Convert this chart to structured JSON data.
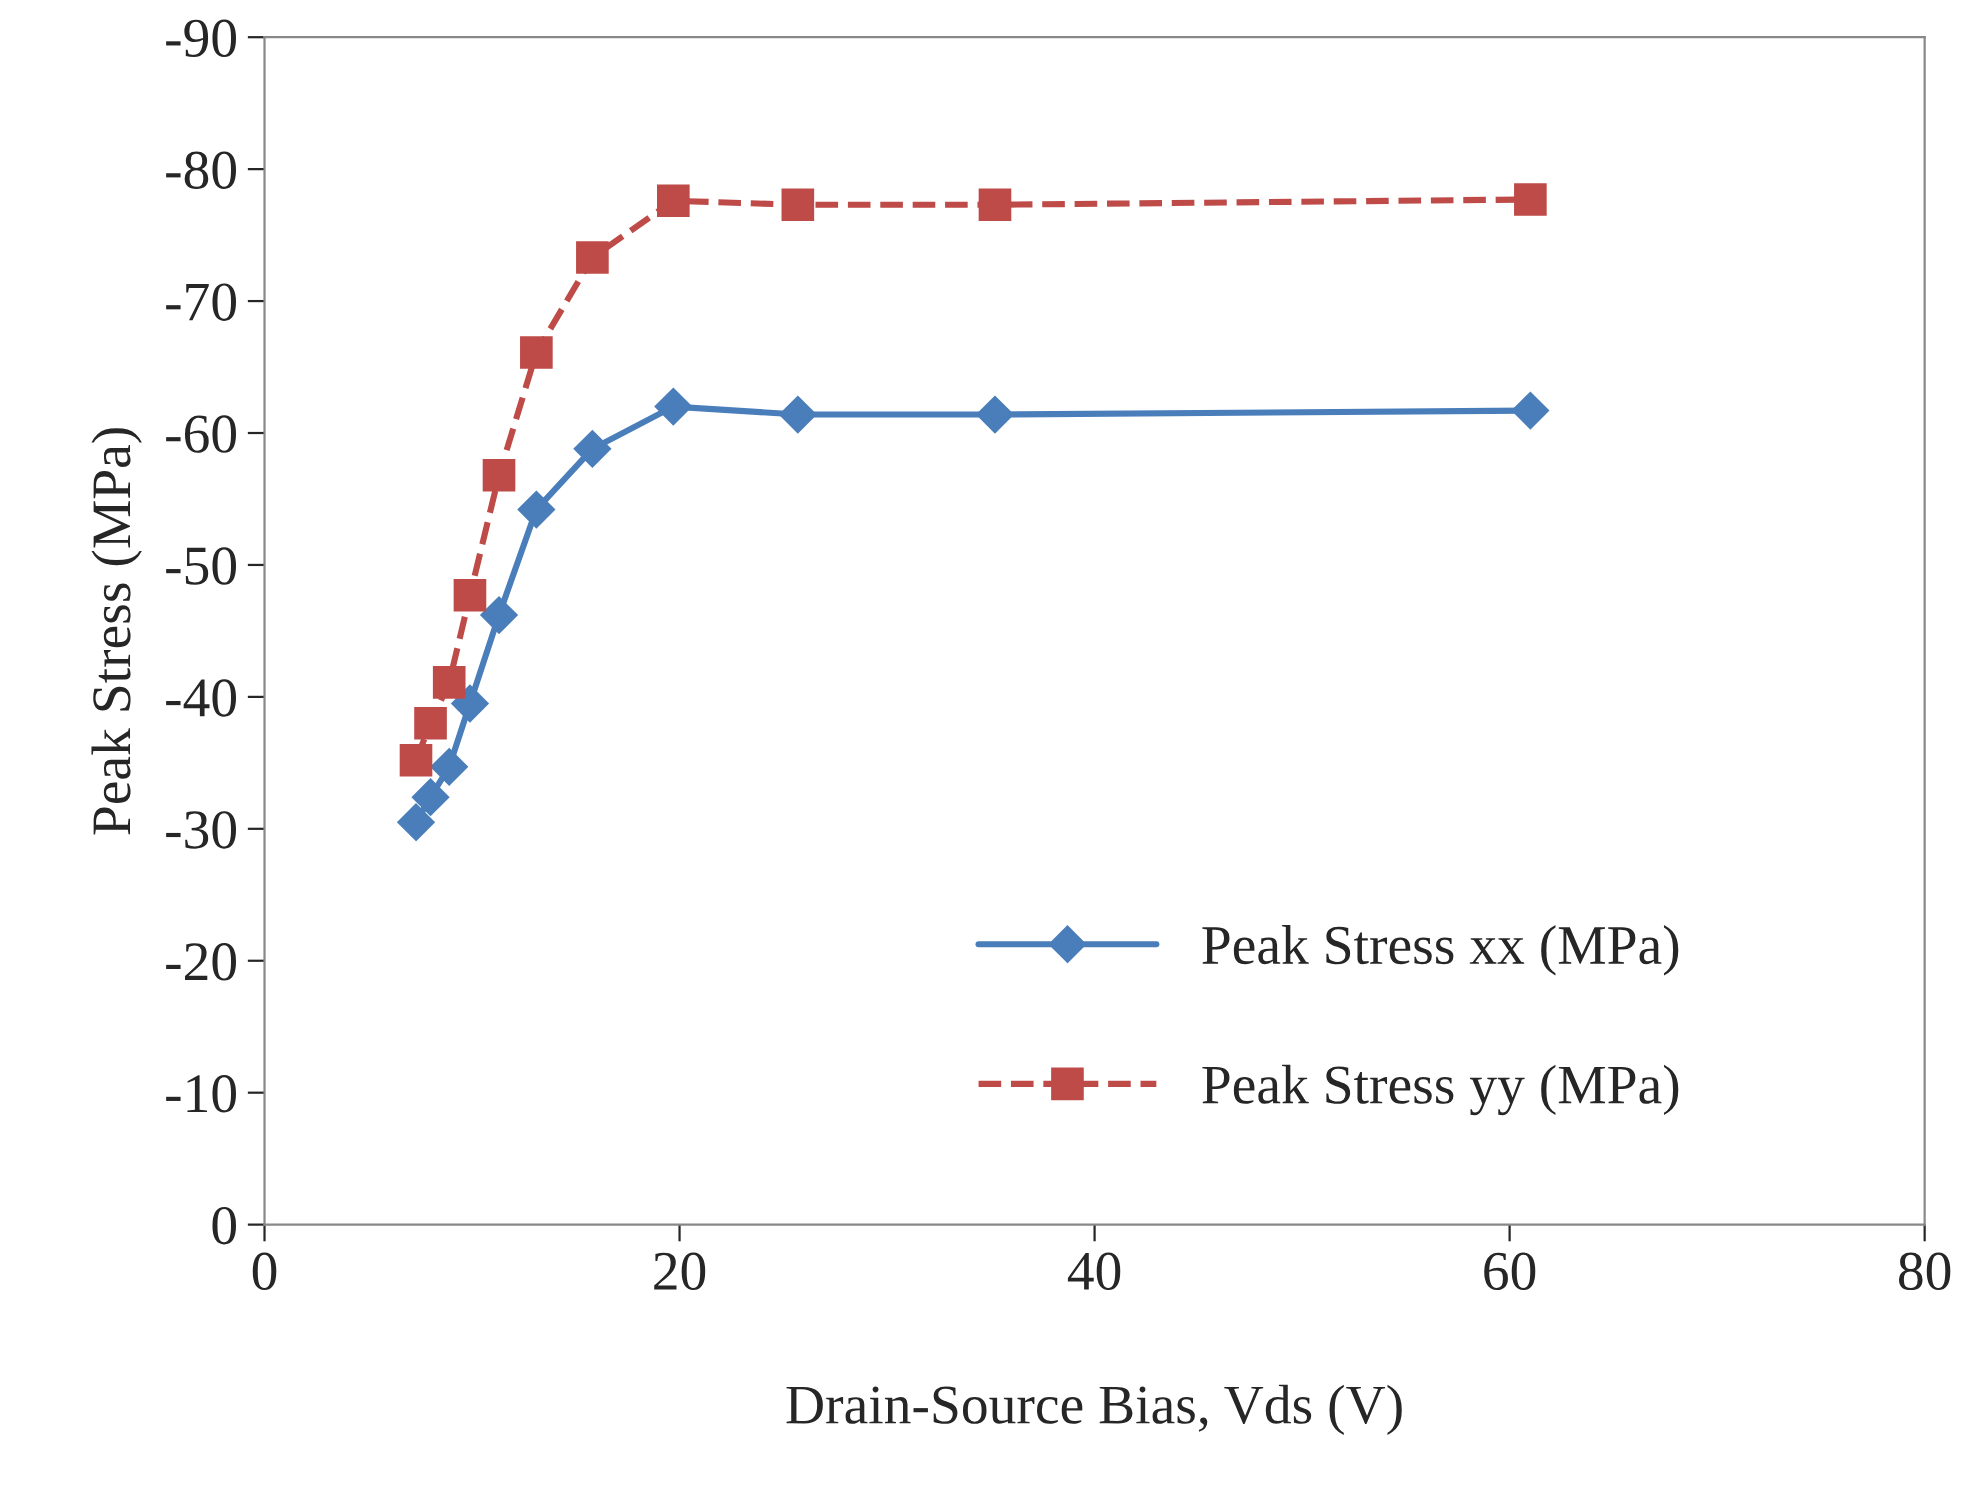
{
  "chart_data": {
    "type": "line",
    "xlabel": "Drain-Source Bias, Vds (V)",
    "ylabel": "Peak Stress (MPa)",
    "xlim": [
      0,
      80
    ],
    "xticks": [
      0,
      20,
      40,
      60,
      80
    ],
    "ylim": [
      0,
      -90
    ],
    "yticks": [
      0,
      -10,
      -20,
      -30,
      -40,
      -50,
      -60,
      -70,
      -80,
      -90
    ],
    "grid": false,
    "legend": "bottom right",
    "series": [
      {
        "name": "Peak Stress xx (MPa)",
        "color": "#4a7ebb",
        "marker": "diamond",
        "line_style": "solid",
        "x": [
          7.3,
          8.0,
          8.9,
          9.9,
          11.3,
          13.1,
          15.8,
          19.7,
          25.7,
          35.2,
          61.0
        ],
        "values": [
          -30.5,
          -32.4,
          -34.7,
          -39.5,
          -46.2,
          -54.2,
          -58.8,
          -62.0,
          -61.4,
          -61.4,
          -61.7
        ]
      },
      {
        "name": "Peak Stress yy (MPa)",
        "color": "#be4b48",
        "marker": "square",
        "line_style": "dashed",
        "x": [
          7.3,
          8.0,
          8.9,
          9.9,
          11.3,
          13.1,
          15.8,
          19.7,
          25.7,
          35.2,
          61.0
        ],
        "values": [
          -35.2,
          -38.0,
          -41.1,
          -47.7,
          -56.8,
          -66.1,
          -73.3,
          -77.6,
          -77.3,
          -77.3,
          -77.7
        ]
      }
    ]
  }
}
